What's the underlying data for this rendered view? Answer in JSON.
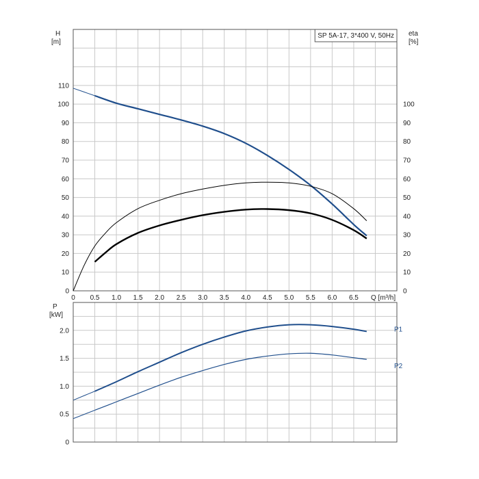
{
  "chart_data": [
    {
      "type": "line",
      "title": "SP 5A-17, 3*400 V, 50Hz",
      "xlabel": "Q [m³/h]",
      "ylabel": "H",
      "ylabel_unit": "[m]",
      "y2label": "eta",
      "y2label_unit": "[%]",
      "xlim": [
        0,
        7.5
      ],
      "ylim": [
        0,
        140
      ],
      "x_ticks": [
        "0",
        "0.5",
        "1.0",
        "1.5",
        "2.0",
        "2.5",
        "3.0",
        "3.5",
        "4.0",
        "4.5",
        "5.0",
        "5.5",
        "6.0",
        "6.5"
      ],
      "y_ticks_left": [
        "0",
        "10",
        "20",
        "30",
        "40",
        "50",
        "60",
        "70",
        "80",
        "90",
        "100",
        "110"
      ],
      "y_ticks_right": [
        "0",
        "10",
        "20",
        "30",
        "40",
        "50",
        "60",
        "70",
        "80",
        "90",
        "100"
      ],
      "grid": true,
      "series": [
        {
          "color": "#1f4e8c",
          "role": "head",
          "x": [
            0,
            0.5,
            1.0,
            1.5,
            2.0,
            2.5,
            3.0,
            3.5,
            4.0,
            4.5,
            5.0,
            5.5,
            6.0,
            6.5,
            6.8
          ],
          "y": [
            108.5,
            104.5,
            100.5,
            97.5,
            94.5,
            91.5,
            88.2,
            84.2,
            79.0,
            72.5,
            65.0,
            56.5,
            46.5,
            35.5,
            29.5
          ]
        },
        {
          "color": "#000000",
          "role": "eta-thin",
          "x": [
            0,
            0.25,
            0.5,
            0.75,
            1.0,
            1.5,
            2.0,
            2.5,
            3.0,
            3.5,
            4.0,
            4.5,
            5.0,
            5.5,
            6.0,
            6.5,
            6.8
          ],
          "y": [
            0,
            13.5,
            24.0,
            31.0,
            36.5,
            44.0,
            48.5,
            52.0,
            54.5,
            56.5,
            57.8,
            58.2,
            57.8,
            56.0,
            52.0,
            44.0,
            37.5
          ]
        },
        {
          "color": "#000000",
          "role": "eta-thick",
          "x": [
            0.5,
            0.75,
            1.0,
            1.5,
            2.0,
            2.5,
            3.0,
            3.5,
            4.0,
            4.5,
            5.0,
            5.5,
            6.0,
            6.5,
            6.8
          ],
          "y": [
            15.5,
            20.5,
            25.0,
            31.0,
            35.0,
            38.0,
            40.5,
            42.3,
            43.5,
            43.8,
            43.2,
            41.5,
            38.0,
            32.5,
            28.0
          ]
        }
      ]
    },
    {
      "type": "line",
      "ylabel": "P",
      "ylabel_unit": "[kW]",
      "xlim": [
        0,
        7.5
      ],
      "ylim": [
        0,
        2.5
      ],
      "y_ticks": [
        "0",
        "0.5",
        "1.0",
        "1.5",
        "2.0"
      ],
      "grid": true,
      "series": [
        {
          "name": "P1",
          "color": "#1f4e8c",
          "x": [
            0,
            0.5,
            1.0,
            1.5,
            2.0,
            2.5,
            3.0,
            3.5,
            4.0,
            4.5,
            5.0,
            5.5,
            6.0,
            6.5,
            6.8
          ],
          "y": [
            0.75,
            0.91,
            1.08,
            1.26,
            1.43,
            1.6,
            1.75,
            1.88,
            1.99,
            2.06,
            2.1,
            2.1,
            2.07,
            2.02,
            1.98
          ]
        },
        {
          "name": "P2",
          "color": "#1f4e8c",
          "x": [
            0,
            0.5,
            1.0,
            1.5,
            2.0,
            2.5,
            3.0,
            3.5,
            4.0,
            4.5,
            5.0,
            5.5,
            6.0,
            6.5,
            6.8
          ],
          "y": [
            0.42,
            0.57,
            0.72,
            0.87,
            1.02,
            1.16,
            1.28,
            1.39,
            1.48,
            1.54,
            1.58,
            1.59,
            1.56,
            1.51,
            1.48
          ]
        }
      ]
    }
  ]
}
